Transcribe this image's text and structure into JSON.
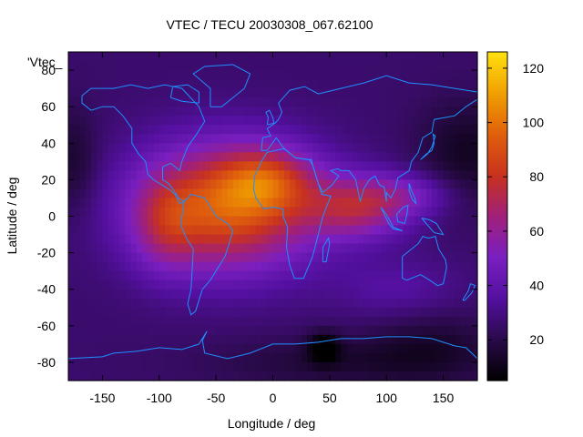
{
  "chart_data": {
    "type": "heatmap",
    "title": "VTEC / TECU 20030308_067.62100",
    "xlabel": "Longitude / deg",
    "ylabel": "Latitude / deg",
    "legend_label": "'Vtec_",
    "xlim": [
      -180,
      180
    ],
    "ylim": [
      -90,
      90
    ],
    "xticks": [
      -150,
      -100,
      -50,
      0,
      50,
      100,
      150
    ],
    "yticks": [
      -80,
      -60,
      -40,
      -20,
      0,
      20,
      40,
      60,
      80
    ],
    "colorbar": {
      "range": [
        5,
        126
      ],
      "ticks": [
        20,
        40,
        60,
        80,
        100,
        120
      ]
    },
    "colormap": [
      "#000000",
      "#2a0a4a",
      "#5410a0",
      "#7a1fc0",
      "#a0207a",
      "#c8321e",
      "#e0600c",
      "#f0a000",
      "#ffe010"
    ],
    "coastline_color": "#1e90ff",
    "field_model": {
      "background": 26,
      "blobs": [
        {
          "lon": -40,
          "lat": 5,
          "amp": 68,
          "sigma_lon": 55,
          "sigma_lat": 24
        },
        {
          "lon": -5,
          "lat": 20,
          "amp": 30,
          "sigma_lon": 28,
          "sigma_lat": 12
        },
        {
          "lon": -95,
          "lat": -5,
          "amp": 20,
          "sigma_lon": 20,
          "sigma_lat": 18
        },
        {
          "lon": 75,
          "lat": 5,
          "amp": 40,
          "sigma_lon": 32,
          "sigma_lat": 12
        },
        {
          "lon": 120,
          "lat": 12,
          "amp": 18,
          "sigma_lon": 28,
          "sigma_lat": 8
        },
        {
          "lon": 110,
          "lat": -40,
          "amp": 10,
          "sigma_lon": 40,
          "sigma_lat": 12
        }
      ],
      "lows": [
        {
          "lon": 170,
          "lat": 35,
          "amp": 14,
          "sigma_lon": 30,
          "sigma_lat": 20
        },
        {
          "lon": -175,
          "lat": 30,
          "amp": 12,
          "sigma_lon": 15,
          "sigma_lat": 20
        },
        {
          "lon": 45,
          "lat": -72,
          "amp": 20,
          "sigma_lon": 10,
          "sigma_lat": 6
        },
        {
          "lon": 60,
          "lat": -80,
          "amp": 10,
          "sigma_lon": 80,
          "sigma_lat": 10
        },
        {
          "lon": 140,
          "lat": -70,
          "amp": 10,
          "sigma_lon": 40,
          "sigma_lat": 14
        }
      ]
    },
    "coastlines": [
      {
        "name": "north-america",
        "points": [
          [
            -168,
            66
          ],
          [
            -160,
            70
          ],
          [
            -140,
            70
          ],
          [
            -125,
            72
          ],
          [
            -110,
            70
          ],
          [
            -95,
            72
          ],
          [
            -80,
            70
          ],
          [
            -65,
            60
          ],
          [
            -60,
            52
          ],
          [
            -67,
            45
          ],
          [
            -75,
            38
          ],
          [
            -80,
            30
          ],
          [
            -82,
            25
          ],
          [
            -90,
            29
          ],
          [
            -97,
            27
          ],
          [
            -97,
            20
          ],
          [
            -92,
            18
          ],
          [
            -88,
            15
          ],
          [
            -83,
            10
          ],
          [
            -78,
            8
          ],
          [
            -82,
            7
          ],
          [
            -86,
            12
          ],
          [
            -92,
            15
          ],
          [
            -105,
            20
          ],
          [
            -110,
            23
          ],
          [
            -112,
            30
          ],
          [
            -118,
            34
          ],
          [
            -124,
            40
          ],
          [
            -124,
            48
          ],
          [
            -132,
            55
          ],
          [
            -140,
            60
          ],
          [
            -150,
            60
          ],
          [
            -160,
            58
          ],
          [
            -168,
            62
          ],
          [
            -168,
            66
          ]
        ]
      },
      {
        "name": "greenland",
        "points": [
          [
            -55,
            60
          ],
          [
            -45,
            60
          ],
          [
            -25,
            70
          ],
          [
            -20,
            78
          ],
          [
            -35,
            83
          ],
          [
            -60,
            82
          ],
          [
            -70,
            78
          ],
          [
            -55,
            70
          ],
          [
            -55,
            60
          ]
        ]
      },
      {
        "name": "south-america",
        "points": [
          [
            -78,
            8
          ],
          [
            -72,
            12
          ],
          [
            -60,
            10
          ],
          [
            -50,
            0
          ],
          [
            -40,
            -4
          ],
          [
            -35,
            -8
          ],
          [
            -38,
            -14
          ],
          [
            -42,
            -22
          ],
          [
            -48,
            -28
          ],
          [
            -55,
            -35
          ],
          [
            -62,
            -40
          ],
          [
            -65,
            -46
          ],
          [
            -68,
            -52
          ],
          [
            -72,
            -54
          ],
          [
            -75,
            -48
          ],
          [
            -72,
            -40
          ],
          [
            -71,
            -30
          ],
          [
            -70,
            -18
          ],
          [
            -76,
            -12
          ],
          [
            -81,
            -5
          ],
          [
            -80,
            0
          ],
          [
            -78,
            8
          ]
        ]
      },
      {
        "name": "africa",
        "points": [
          [
            -17,
            15
          ],
          [
            -16,
            22
          ],
          [
            -10,
            30
          ],
          [
            -5,
            35
          ],
          [
            10,
            37
          ],
          [
            20,
            32
          ],
          [
            32,
            31
          ],
          [
            35,
            28
          ],
          [
            43,
            12
          ],
          [
            51,
            11
          ],
          [
            44,
            0
          ],
          [
            40,
            -10
          ],
          [
            35,
            -22
          ],
          [
            27,
            -34
          ],
          [
            19,
            -34
          ],
          [
            15,
            -27
          ],
          [
            12,
            -17
          ],
          [
            13,
            -6
          ],
          [
            9,
            0
          ],
          [
            9,
            4
          ],
          [
            0,
            5
          ],
          [
            -8,
            4
          ],
          [
            -15,
            10
          ],
          [
            -17,
            15
          ]
        ]
      },
      {
        "name": "eurasia",
        "points": [
          [
            -10,
            36
          ],
          [
            -9,
            43
          ],
          [
            -2,
            44
          ],
          [
            -5,
            48
          ],
          [
            2,
            51
          ],
          [
            5,
            53
          ],
          [
            8,
            57
          ],
          [
            5,
            62
          ],
          [
            15,
            69
          ],
          [
            28,
            71
          ],
          [
            40,
            67
          ],
          [
            60,
            70
          ],
          [
            80,
            73
          ],
          [
            100,
            77
          ],
          [
            120,
            73
          ],
          [
            140,
            72
          ],
          [
            160,
            70
          ],
          [
            180,
            68
          ],
          [
            180,
            64
          ],
          [
            170,
            60
          ],
          [
            160,
            55
          ],
          [
            142,
            53
          ],
          [
            140,
            46
          ],
          [
            132,
            43
          ],
          [
            128,
            35
          ],
          [
            122,
            30
          ],
          [
            120,
            25
          ],
          [
            110,
            21
          ],
          [
            108,
            15
          ],
          [
            104,
            10
          ],
          [
            100,
            13
          ],
          [
            100,
            8
          ],
          [
            98,
            16
          ],
          [
            94,
            17
          ],
          [
            90,
            22
          ],
          [
            85,
            20
          ],
          [
            80,
            15
          ],
          [
            77,
            8
          ],
          [
            73,
            20
          ],
          [
            67,
            25
          ],
          [
            60,
            25
          ],
          [
            57,
            26
          ],
          [
            51,
            25
          ],
          [
            56,
            23
          ],
          [
            58,
            22
          ],
          [
            52,
            17
          ],
          [
            44,
            13
          ],
          [
            40,
            18
          ],
          [
            35,
            28
          ],
          [
            34,
            31
          ],
          [
            30,
            31
          ],
          [
            20,
            32
          ],
          [
            10,
            37
          ],
          [
            3,
            43
          ],
          [
            -5,
            36
          ],
          [
            -10,
            36
          ]
        ]
      },
      {
        "name": "australia",
        "points": [
          [
            114,
            -22
          ],
          [
            114,
            -34
          ],
          [
            118,
            -35
          ],
          [
            130,
            -32
          ],
          [
            138,
            -35
          ],
          [
            145,
            -38
          ],
          [
            150,
            -37
          ],
          [
            153,
            -28
          ],
          [
            152,
            -24
          ],
          [
            146,
            -18
          ],
          [
            143,
            -11
          ],
          [
            137,
            -12
          ],
          [
            132,
            -11
          ],
          [
            128,
            -15
          ],
          [
            122,
            -18
          ],
          [
            114,
            -22
          ]
        ]
      },
      {
        "name": "madagascar",
        "points": [
          [
            44,
            -25
          ],
          [
            47,
            -25
          ],
          [
            50,
            -15
          ],
          [
            49,
            -12
          ],
          [
            44,
            -17
          ],
          [
            44,
            -25
          ]
        ]
      },
      {
        "name": "britain",
        "points": [
          [
            -5,
            50
          ],
          [
            1,
            51
          ],
          [
            0,
            54
          ],
          [
            -3,
            58
          ],
          [
            -6,
            57
          ],
          [
            -4,
            54
          ],
          [
            -5,
            50
          ]
        ]
      },
      {
        "name": "japan",
        "points": [
          [
            130,
            31
          ],
          [
            135,
            34
          ],
          [
            140,
            36
          ],
          [
            142,
            40
          ],
          [
            141,
            45
          ],
          [
            143,
            44
          ],
          [
            140,
            38
          ],
          [
            136,
            34
          ],
          [
            130,
            31
          ]
        ]
      },
      {
        "name": "new-zealand",
        "points": [
          [
            167,
            -46
          ],
          [
            172,
            -41
          ],
          [
            174,
            -37
          ],
          [
            178,
            -38
          ],
          [
            175,
            -42
          ],
          [
            169,
            -46
          ],
          [
            167,
            -46
          ]
        ]
      },
      {
        "name": "borneo",
        "points": [
          [
            109,
            1
          ],
          [
            115,
            5
          ],
          [
            119,
            6
          ],
          [
            118,
            1
          ],
          [
            116,
            -4
          ],
          [
            110,
            -3
          ],
          [
            109,
            1
          ]
        ]
      },
      {
        "name": "sumatra-java",
        "points": [
          [
            95,
            5
          ],
          [
            100,
            1
          ],
          [
            106,
            -6
          ],
          [
            114,
            -8
          ],
          [
            106,
            -7
          ],
          [
            102,
            -4
          ],
          [
            95,
            5
          ]
        ]
      },
      {
        "name": "new-guinea",
        "points": [
          [
            131,
            -1
          ],
          [
            138,
            -2
          ],
          [
            144,
            -4
          ],
          [
            150,
            -10
          ],
          [
            142,
            -9
          ],
          [
            135,
            -4
          ],
          [
            131,
            -1
          ]
        ]
      },
      {
        "name": "philippines",
        "points": [
          [
            120,
            18
          ],
          [
            122,
            14
          ],
          [
            125,
            10
          ],
          [
            126,
            7
          ],
          [
            123,
            9
          ],
          [
            120,
            14
          ],
          [
            120,
            18
          ]
        ]
      },
      {
        "name": "baffin",
        "points": [
          [
            -90,
            65
          ],
          [
            -80,
            63
          ],
          [
            -65,
            62
          ],
          [
            -65,
            68
          ],
          [
            -75,
            72
          ],
          [
            -88,
            71
          ],
          [
            -90,
            65
          ]
        ]
      },
      {
        "name": "antarctica",
        "points": [
          [
            -180,
            -78
          ],
          [
            -150,
            -77
          ],
          [
            -140,
            -75
          ],
          [
            -120,
            -74
          ],
          [
            -100,
            -72
          ],
          [
            -80,
            -73
          ],
          [
            -65,
            -70
          ],
          [
            -58,
            -63
          ],
          [
            -62,
            -68
          ],
          [
            -60,
            -75
          ],
          [
            -40,
            -78
          ],
          [
            -20,
            -75
          ],
          [
            0,
            -70
          ],
          [
            20,
            -70
          ],
          [
            40,
            -69
          ],
          [
            60,
            -67
          ],
          [
            80,
            -67
          ],
          [
            100,
            -66
          ],
          [
            120,
            -66
          ],
          [
            140,
            -67
          ],
          [
            160,
            -71
          ],
          [
            170,
            -72
          ],
          [
            180,
            -78
          ]
        ]
      }
    ]
  }
}
